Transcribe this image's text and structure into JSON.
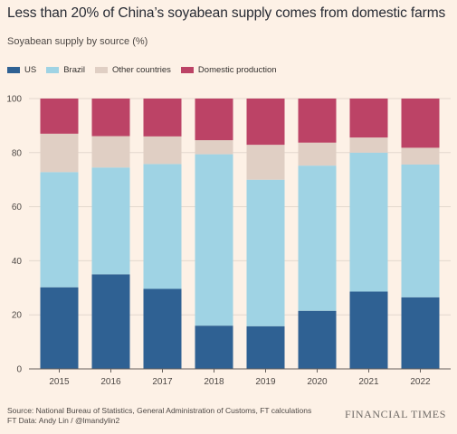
{
  "header": {
    "title": "Less than 20% of China’s soyabean supply comes from domestic farms",
    "subtitle": "Soyabean supply by source (%)"
  },
  "footer": {
    "source": "Source: National Bureau of Statistics, General Administration of Customs, FT calculations",
    "credit": "FT Data: Andy Lin / @lmandylin2",
    "brand": "FINANCIAL TIMES"
  },
  "colors": {
    "us": "#2f6193",
    "brazil": "#9fd3e4",
    "other": "#e0cfc4",
    "domestic": "#bc4366",
    "grid": "#e3d8ce",
    "axis_text": "#4d4845"
  },
  "chart_data": {
    "type": "bar",
    "stacked": true,
    "categories": [
      "2015",
      "2016",
      "2017",
      "2018",
      "2019",
      "2020",
      "2021",
      "2022"
    ],
    "series": [
      {
        "name": "US",
        "color": "#2f6193",
        "values": [
          30.2,
          35.0,
          29.6,
          16.0,
          15.8,
          21.5,
          28.6,
          26.5
        ]
      },
      {
        "name": "Brazil",
        "color": "#9fd3e4",
        "values": [
          42.6,
          39.5,
          46.2,
          63.4,
          54.2,
          53.7,
          51.4,
          49.1
        ]
      },
      {
        "name": "Other countries",
        "color": "#e0cfc4",
        "values": [
          14.2,
          11.6,
          10.2,
          5.2,
          12.9,
          8.5,
          5.6,
          6.2
        ]
      },
      {
        "name": "Domestic production",
        "color": "#bc4366",
        "values": [
          13.0,
          13.9,
          14.0,
          15.4,
          17.1,
          16.3,
          14.4,
          18.2
        ]
      }
    ],
    "ylim": [
      0,
      100
    ],
    "yticks": [
      0,
      20,
      40,
      60,
      80,
      100
    ],
    "grid": true,
    "legend": "top-left",
    "title": "Less than 20% of China’s soyabean supply comes from domestic farms",
    "ylabel": "Soyabean supply by source (%)",
    "xlabel": ""
  }
}
